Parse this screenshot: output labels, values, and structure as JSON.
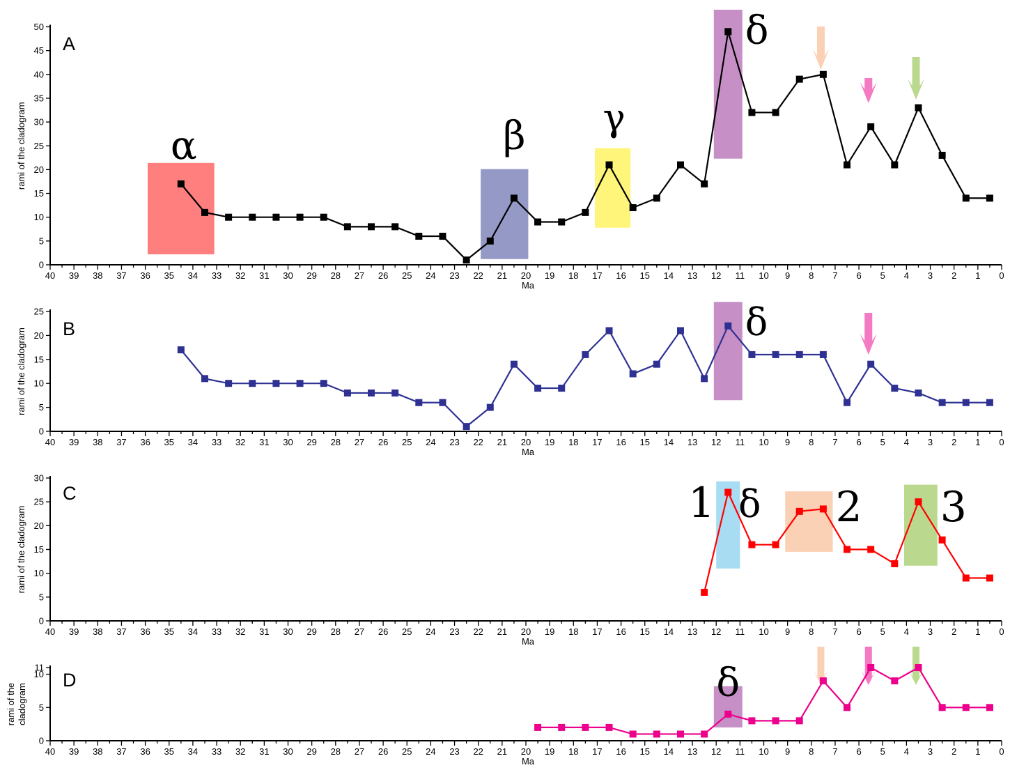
{
  "chart_data": [
    {
      "type": "line",
      "panel_label": "A",
      "xlabel": "Ma",
      "ylabel": "rami of the cladogram",
      "xlim": [
        40,
        0
      ],
      "x_reversed": true,
      "ylim": [
        0,
        50
      ],
      "yticks": [
        0,
        5,
        10,
        15,
        20,
        25,
        30,
        35,
        40,
        45,
        50
      ],
      "line_color": "#000000",
      "series": [
        {
          "x": [
            34.5,
            33.5,
            32.5,
            31.5,
            30.5,
            29.5,
            28.5,
            27.5,
            26.5,
            25.5,
            24.5,
            23.5,
            22.5,
            21.5,
            20.5,
            19.5,
            18.5,
            17.5,
            16.5,
            15.5,
            14.5,
            13.5,
            12.5,
            11.5,
            10.5,
            9.5,
            8.5,
            7.5,
            6.5,
            5.5,
            4.5,
            3.5,
            2.5,
            1.5,
            0.5
          ],
          "y": [
            17,
            11,
            10,
            10,
            10,
            10,
            10,
            8,
            8,
            8,
            6,
            6,
            1,
            5,
            14,
            9,
            9,
            11,
            21,
            12,
            14,
            21,
            17,
            49,
            32,
            32,
            39,
            40,
            21,
            29,
            21,
            33,
            23,
            14,
            14
          ]
        }
      ],
      "highlights": [
        {
          "label": "α",
          "x": [
            35.9,
            33.1
          ],
          "y": [
            2.2,
            21.4
          ],
          "color": "#ff7f7f"
        },
        {
          "label": "β",
          "x": [
            21.9,
            19.9
          ],
          "y": [
            1.2,
            20.1
          ],
          "color": "#9599c6"
        },
        {
          "label": "γ",
          "x": [
            17.1,
            15.6
          ],
          "y": [
            7.8,
            24.5
          ],
          "color": "#fef57a"
        },
        {
          "label": "δ",
          "x": [
            12.1,
            10.9
          ],
          "y": [
            22.3,
            53.6
          ],
          "color": "#c690c6"
        }
      ],
      "arrows": [
        {
          "x": 7.6,
          "color": "#fbd1b6"
        },
        {
          "x": 5.6,
          "color": "#f57ac4"
        },
        {
          "x": 3.6,
          "color": "#bad98f"
        }
      ]
    },
    {
      "type": "line",
      "panel_label": "B",
      "xlabel": "Ma",
      "ylabel": "rami of the cladogram",
      "xlim": [
        40,
        0
      ],
      "x_reversed": true,
      "ylim": [
        0,
        25
      ],
      "yticks": [
        0,
        5,
        10,
        15,
        20,
        25
      ],
      "line_color": "#2e3192",
      "series": [
        {
          "x": [
            34.5,
            33.5,
            32.5,
            31.5,
            30.5,
            29.5,
            28.5,
            27.5,
            26.5,
            25.5,
            24.5,
            23.5,
            22.5,
            21.5,
            20.5,
            19.5,
            18.5,
            17.5,
            16.5,
            15.5,
            14.5,
            13.5,
            12.5,
            11.5,
            10.5,
            9.5,
            8.5,
            7.5,
            6.5,
            5.5,
            4.5,
            3.5,
            2.5,
            1.5,
            0.5
          ],
          "y": [
            17,
            11,
            10,
            10,
            10,
            10,
            10,
            8,
            8,
            8,
            6,
            6,
            1,
            5,
            14,
            9,
            9,
            16,
            21,
            12,
            14,
            21,
            11,
            22,
            16,
            16,
            16,
            16,
            6,
            14,
            9,
            8,
            6,
            6,
            6
          ]
        }
      ],
      "highlights": [
        {
          "label": "δ",
          "x": [
            12.1,
            10.9
          ],
          "y": [
            6.5,
            27.0
          ],
          "color": "#c690c6"
        }
      ],
      "arrows": [
        {
          "x": 5.6,
          "color": "#f57ac4"
        }
      ]
    },
    {
      "type": "line",
      "panel_label": "C",
      "xlabel": "Ma",
      "ylabel": "rami of the cladogram",
      "xlim": [
        40,
        0
      ],
      "x_reversed": true,
      "ylim": [
        0,
        30
      ],
      "yticks": [
        0,
        5,
        10,
        15,
        20,
        25,
        30
      ],
      "line_color": "#ff0000",
      "series": [
        {
          "x": [
            12.5,
            11.5,
            10.5,
            9.5,
            8.5,
            7.5,
            6.5,
            5.5,
            4.5,
            3.5,
            2.5,
            1.5,
            0.5
          ],
          "y": [
            6,
            27,
            16,
            16,
            23,
            23.5,
            15,
            15,
            12,
            25,
            17,
            9,
            9
          ]
        }
      ],
      "highlights": [
        {
          "label": "1",
          "x": [
            12.0,
            11.0
          ],
          "y": [
            11.0,
            29.3
          ],
          "color": "#a8dcf2"
        },
        {
          "label": "δ",
          "x": [],
          "y": [],
          "color": ""
        },
        {
          "label": "2",
          "x": [
            9.1,
            7.1
          ],
          "y": [
            14.5,
            27.2
          ],
          "color": "#fbd1b6"
        },
        {
          "label": "3",
          "x": [
            4.1,
            2.7
          ],
          "y": [
            11.6,
            28.6
          ],
          "color": "#bad98f"
        }
      ]
    },
    {
      "type": "line",
      "panel_label": "D",
      "xlabel": "Ma",
      "ylabel": "rami of the cladogram",
      "xlim": [
        40,
        0
      ],
      "x_reversed": true,
      "ylim": [
        0,
        11
      ],
      "yticks": [
        0,
        5,
        10,
        11
      ],
      "ytick_labels": [
        "0",
        "5",
        "10",
        "11"
      ],
      "line_color": "#ec008c",
      "series": [
        {
          "x": [
            19.5,
            18.5,
            17.5,
            16.5,
            15.5,
            14.5,
            13.5,
            12.5,
            11.5,
            10.5,
            9.5,
            8.5,
            7.5,
            6.5,
            5.5,
            4.5,
            3.5,
            2.5,
            1.5,
            0.5
          ],
          "y": [
            2,
            2,
            2,
            2,
            1,
            1,
            1,
            1,
            4,
            3,
            3,
            3,
            9,
            5,
            11,
            9,
            11,
            5,
            5,
            5
          ]
        }
      ],
      "highlights": [
        {
          "label": "δ",
          "x": [
            12.1,
            10.9
          ],
          "y": [
            2.0,
            8.2
          ],
          "color": "#c690c6"
        }
      ],
      "arrows": [
        {
          "x": 7.6,
          "color": "#fbd1b6"
        },
        {
          "x": 5.6,
          "color": "#f57ac4"
        },
        {
          "x": 3.6,
          "color": "#bad98f"
        }
      ]
    }
  ]
}
